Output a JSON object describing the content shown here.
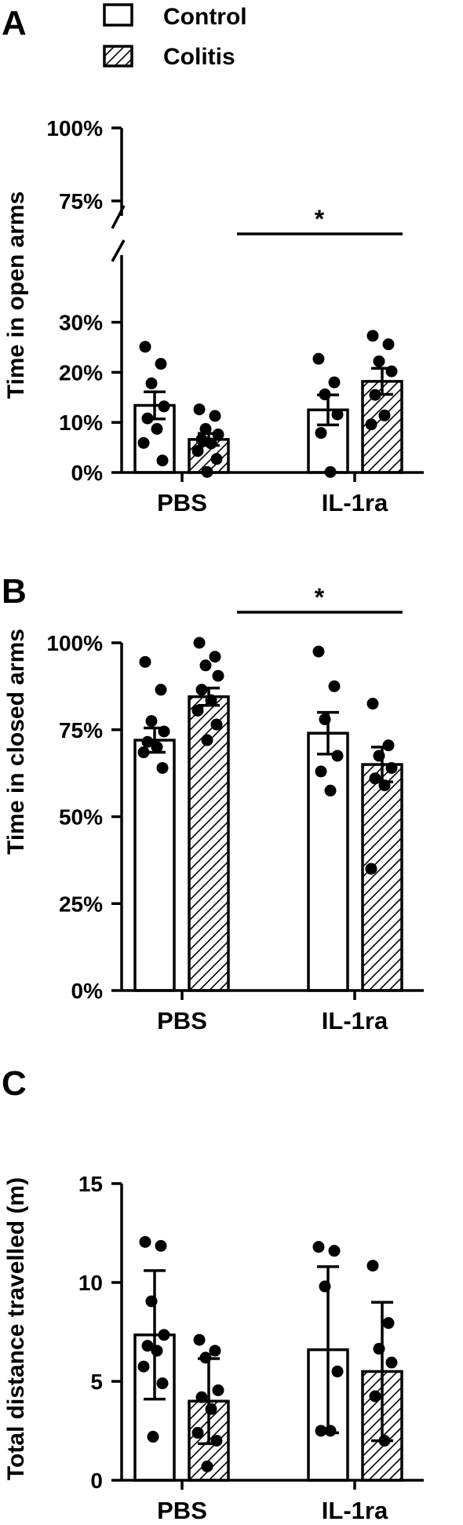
{
  "legend": {
    "items": [
      {
        "label": "Control",
        "pattern": "open"
      },
      {
        "label": "Colitis",
        "pattern": "hatched"
      }
    ]
  },
  "colors": {
    "ink": "#000000",
    "background": "#ffffff"
  },
  "chart_data": [
    {
      "panel": "A",
      "type": "bar",
      "ylabel": "Time in open arms",
      "categories": [
        "PBS",
        "IL-1ra"
      ],
      "axis_break": true,
      "ylim_lower": [
        0,
        30
      ],
      "ylim_upper": [
        75,
        100
      ],
      "yticks_lower": [
        "0%",
        "10%",
        "20%",
        "30%"
      ],
      "yticks_upper": [
        "75%",
        "100%"
      ],
      "error": "SEM",
      "series": [
        {
          "name": "Control",
          "values": [
            13.4,
            12.5
          ],
          "errors": [
            2.7,
            3.0
          ],
          "points": [
            [
              25.1,
              21.7,
              17.8,
              13.2,
              10.8,
              8.7,
              5.9,
              2.4
            ],
            [
              22.7,
              18.0,
              15.6,
              11.6,
              7.9,
              0.1
            ]
          ]
        },
        {
          "name": "Colitis",
          "values": [
            6.6,
            18.2
          ],
          "errors": [
            1.2,
            2.6
          ],
          "points": [
            [
              12.6,
              11.3,
              8.7,
              7.6,
              6.6,
              5.8,
              4.3,
              2.7,
              0.1
            ],
            [
              27.3,
              25.6,
              22.2,
              20.2,
              15.5,
              11.4,
              9.6
            ]
          ]
        }
      ],
      "significance": {
        "from": "PBS-Colitis",
        "to": "IL-1ra-Colitis",
        "label": "*"
      }
    },
    {
      "panel": "B",
      "type": "bar",
      "ylabel": "Time in closed arms",
      "categories": [
        "PBS",
        "IL-1ra"
      ],
      "ylim": [
        0,
        100
      ],
      "yticks": [
        "0%",
        "25%",
        "50%",
        "75%",
        "100%"
      ],
      "error": "SEM",
      "series": [
        {
          "name": "Control",
          "values": [
            72.0,
            74.0
          ],
          "errors": [
            3.5,
            6.0
          ],
          "points": [
            [
              94.5,
              86.5,
              77.5,
              74.5,
              71.5,
              70.0,
              68.5,
              64.0
            ],
            [
              97.5,
              87.5,
              78.0,
              67.5,
              63.0,
              57.5
            ]
          ]
        },
        {
          "name": "Colitis",
          "values": [
            84.5,
            65.0
          ],
          "errors": [
            2.5,
            5.0
          ],
          "points": [
            [
              100.0,
              96.0,
              93.5,
              90.5,
              86.5,
              83.5,
              80.5,
              76.5,
              72.0
            ],
            [
              82.5,
              70.5,
              67.5,
              64.0,
              61.0,
              59.0,
              35.0
            ]
          ]
        }
      ],
      "significance": {
        "from": "PBS-Colitis",
        "to": "IL-1ra-Colitis",
        "label": "*"
      }
    },
    {
      "panel": "C",
      "type": "bar",
      "ylabel": "Total distance travelled (m)",
      "categories": [
        "PBS",
        "IL-1ra"
      ],
      "ylim": [
        0,
        15
      ],
      "yticks": [
        "0",
        "5",
        "10",
        "15"
      ],
      "error": "SD",
      "series": [
        {
          "name": "Control",
          "values": [
            7.35,
            6.6
          ],
          "errors": [
            3.25,
            4.2
          ],
          "points": [
            [
              12.05,
              11.85,
              9.05,
              7.35,
              6.8,
              6.55,
              5.75,
              4.9,
              2.2
            ],
            [
              11.8,
              11.6,
              9.8,
              5.5,
              2.5,
              2.5
            ]
          ]
        },
        {
          "name": "Colitis",
          "values": [
            4.0,
            5.5
          ],
          "errors": [
            2.15,
            3.5
          ],
          "points": [
            [
              7.1,
              6.55,
              6.2,
              4.55,
              4.2,
              3.6,
              2.4,
              2.0,
              0.7
            ],
            [
              10.85,
              7.95,
              6.65,
              5.95,
              4.25,
              2.0
            ]
          ]
        }
      ]
    }
  ]
}
